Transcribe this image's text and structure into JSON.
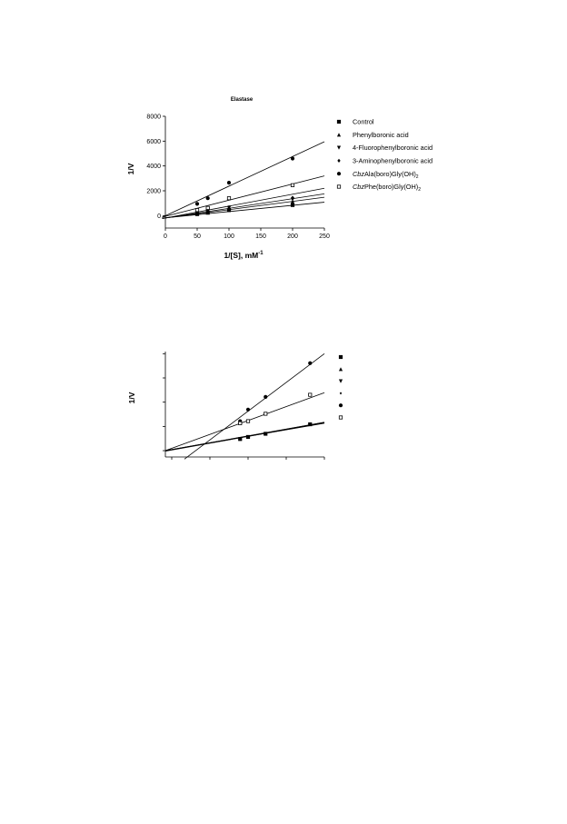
{
  "chart_data": [
    {
      "type": "line",
      "title": "Elastase",
      "xlabel": "1/[S], mM",
      "xlabel_sup": "-1",
      "ylabel": "1/V",
      "xlim": [
        0,
        250
      ],
      "ylim": [
        -1000,
        8000
      ],
      "xticks": [
        0,
        50,
        100,
        150,
        200,
        250
      ],
      "yticks": [
        0,
        2000,
        4000,
        6000,
        8000
      ],
      "xtick_labels": [
        "0",
        "50",
        "100",
        "150",
        "200",
        "250"
      ],
      "ytick_labels": [
        "0",
        "2000",
        "4000",
        "6000",
        "8000"
      ],
      "grid": false,
      "legend_position": "right",
      "series": [
        {
          "name": "Control",
          "name_italic": "",
          "name_sub": "",
          "marker": "square-filled",
          "x": [
            50,
            66.7,
            100,
            200
          ],
          "y": [
            120,
            230,
            440,
            850
          ],
          "fit_x": [
            -5,
            250
          ],
          "fit_y": [
            -200,
            1080
          ]
        },
        {
          "name": "Phenylboronic acid",
          "name_italic": "",
          "name_sub": "",
          "marker": "triangle-up-filled",
          "x": [
            50,
            66.7,
            100,
            200
          ],
          "y": [
            200,
            330,
            560,
            1150
          ],
          "fit_x": [
            -5,
            250
          ],
          "fit_y": [
            -220,
            1480
          ]
        },
        {
          "name": "4-Fluorophenylboronic acid",
          "name_italic": "",
          "name_sub": "",
          "marker": "triangle-down-filled",
          "x": [
            50,
            66.7,
            100,
            200
          ],
          "y": [
            230,
            360,
            620,
            1300
          ],
          "fit_x": [
            -5,
            250
          ],
          "fit_y": [
            -230,
            1750
          ]
        },
        {
          "name": "3-Aminophenylboronic acid",
          "name_italic": "",
          "name_sub": "",
          "marker": "diamond-filled",
          "x": [
            50,
            66.7,
            100,
            200
          ],
          "y": [
            260,
            420,
            690,
            1450
          ],
          "fit_x": [
            -5,
            250
          ],
          "fit_y": [
            -240,
            2200
          ]
        },
        {
          "name": "Ala(boro)Gly(OH)",
          "name_italic": "Cbz",
          "name_sub": "2",
          "marker": "circle-filled",
          "x": [
            50,
            66.7,
            100,
            200
          ],
          "y": [
            950,
            1400,
            2650,
            4600
          ],
          "fit_x": [
            -5,
            250
          ],
          "fit_y": [
            -130,
            5950
          ]
        },
        {
          "name": "Phe(boro)Gly(OH)",
          "name_italic": "Cbz",
          "name_sub": "2",
          "marker": "square-open",
          "x": [
            50,
            66.7,
            100,
            200
          ],
          "y": [
            450,
            620,
            1400,
            2450
          ],
          "fit_x": [
            -5,
            250
          ],
          "fit_y": [
            -120,
            3200
          ]
        }
      ]
    },
    {
      "type": "line",
      "title": "",
      "xlabel": "",
      "ylabel": "1/V",
      "grid": false,
      "legend_position": "right",
      "legend_markers": [
        "square-filled",
        "triangle-up-filled",
        "triangle-down-filled",
        "diamond-filled",
        "circle-filled",
        "square-open"
      ],
      "series": [
        {
          "marker": "square-filled",
          "x": [
            0.47,
            0.52,
            0.63,
            0.91
          ],
          "y": [
            0.17,
            0.19,
            0.22,
            0.31
          ]
        },
        {
          "marker": "circle-filled",
          "x": [
            0.47,
            0.52,
            0.63,
            0.91
          ],
          "y": [
            0.34,
            0.45,
            0.57,
            0.89
          ]
        },
        {
          "marker": "square-open",
          "x": [
            0.47,
            0.52,
            0.63,
            0.91
          ],
          "y": [
            0.32,
            0.34,
            0.41,
            0.59
          ]
        }
      ]
    }
  ]
}
